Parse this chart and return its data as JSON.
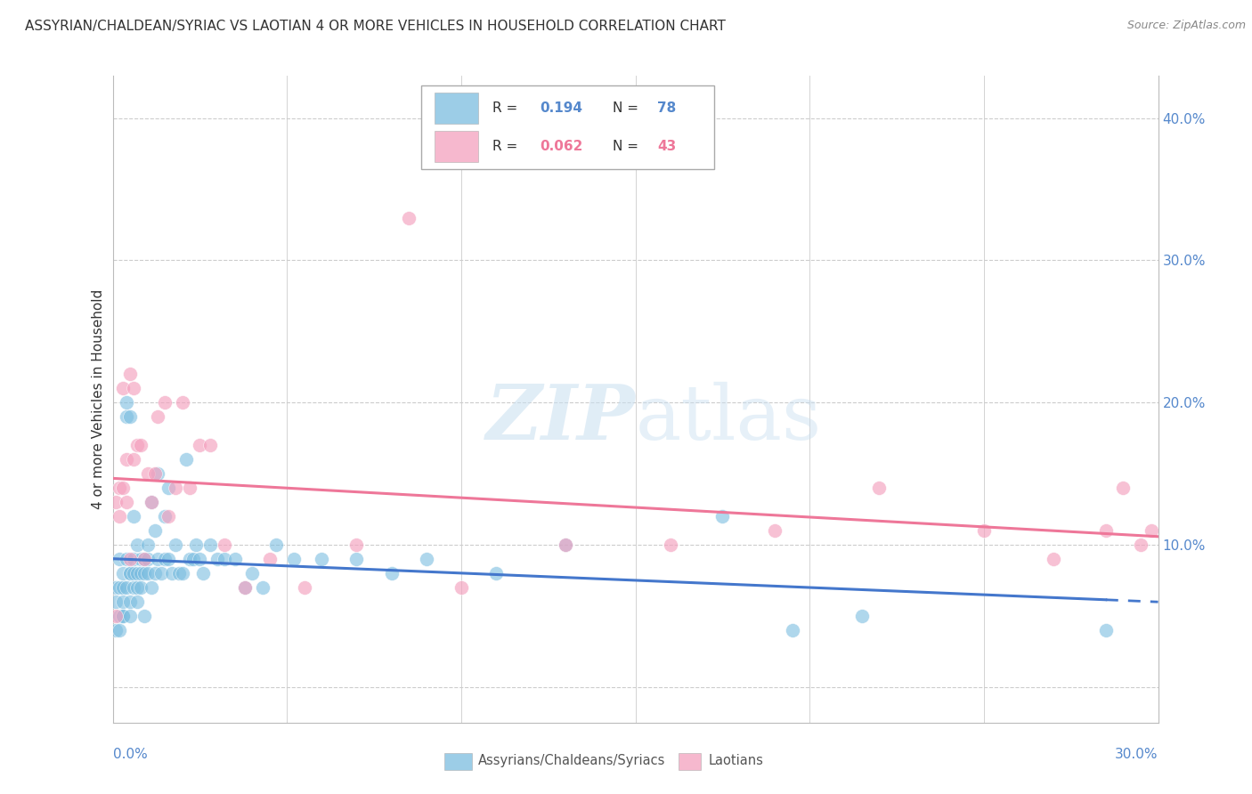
{
  "title": "ASSYRIAN/CHALDEAN/SYRIAC VS LAOTIAN 4 OR MORE VEHICLES IN HOUSEHOLD CORRELATION CHART",
  "source": "Source: ZipAtlas.com",
  "ylabel": "4 or more Vehicles in Household",
  "ylabel_right_ticks": [
    "10.0%",
    "20.0%",
    "30.0%",
    "40.0%"
  ],
  "ylabel_right_values": [
    0.1,
    0.2,
    0.3,
    0.4
  ],
  "xmin": 0.0,
  "xmax": 0.3,
  "ymin": -0.025,
  "ymax": 0.43,
  "blue_R": 0.194,
  "blue_N": 78,
  "pink_R": 0.062,
  "pink_N": 43,
  "blue_color": "#7bbde0",
  "pink_color": "#f4a0be",
  "blue_line_color": "#4477cc",
  "pink_line_color": "#ee7799",
  "legend_label_blue": "Assyrians/Chaldeans/Syriacs",
  "legend_label_pink": "Laotians",
  "blue_scatter_x": [
    0.001,
    0.001,
    0.001,
    0.002,
    0.002,
    0.002,
    0.002,
    0.003,
    0.003,
    0.003,
    0.003,
    0.003,
    0.004,
    0.004,
    0.004,
    0.004,
    0.005,
    0.005,
    0.005,
    0.005,
    0.005,
    0.006,
    0.006,
    0.006,
    0.006,
    0.007,
    0.007,
    0.007,
    0.007,
    0.008,
    0.008,
    0.008,
    0.009,
    0.009,
    0.009,
    0.01,
    0.01,
    0.01,
    0.011,
    0.011,
    0.012,
    0.012,
    0.013,
    0.013,
    0.014,
    0.015,
    0.015,
    0.016,
    0.016,
    0.017,
    0.018,
    0.019,
    0.02,
    0.021,
    0.022,
    0.023,
    0.024,
    0.025,
    0.026,
    0.028,
    0.03,
    0.032,
    0.035,
    0.038,
    0.04,
    0.043,
    0.047,
    0.052,
    0.06,
    0.07,
    0.08,
    0.09,
    0.11,
    0.13,
    0.175,
    0.195,
    0.215,
    0.285
  ],
  "blue_scatter_y": [
    0.06,
    0.07,
    0.04,
    0.07,
    0.04,
    0.09,
    0.05,
    0.05,
    0.07,
    0.08,
    0.05,
    0.06,
    0.07,
    0.09,
    0.2,
    0.19,
    0.06,
    0.08,
    0.05,
    0.19,
    0.08,
    0.07,
    0.09,
    0.08,
    0.12,
    0.07,
    0.08,
    0.06,
    0.1,
    0.09,
    0.07,
    0.08,
    0.08,
    0.09,
    0.05,
    0.08,
    0.1,
    0.09,
    0.07,
    0.13,
    0.08,
    0.11,
    0.09,
    0.15,
    0.08,
    0.09,
    0.12,
    0.09,
    0.14,
    0.08,
    0.1,
    0.08,
    0.08,
    0.16,
    0.09,
    0.09,
    0.1,
    0.09,
    0.08,
    0.1,
    0.09,
    0.09,
    0.09,
    0.07,
    0.08,
    0.07,
    0.1,
    0.09,
    0.09,
    0.09,
    0.08,
    0.09,
    0.08,
    0.1,
    0.12,
    0.04,
    0.05,
    0.04
  ],
  "pink_scatter_x": [
    0.001,
    0.001,
    0.002,
    0.002,
    0.003,
    0.003,
    0.004,
    0.004,
    0.005,
    0.005,
    0.006,
    0.006,
    0.007,
    0.008,
    0.009,
    0.01,
    0.011,
    0.012,
    0.013,
    0.015,
    0.016,
    0.018,
    0.02,
    0.022,
    0.025,
    0.028,
    0.032,
    0.038,
    0.045,
    0.055,
    0.07,
    0.085,
    0.1,
    0.13,
    0.16,
    0.19,
    0.22,
    0.25,
    0.27,
    0.285,
    0.29,
    0.295,
    0.298
  ],
  "pink_scatter_y": [
    0.13,
    0.05,
    0.12,
    0.14,
    0.14,
    0.21,
    0.16,
    0.13,
    0.09,
    0.22,
    0.16,
    0.21,
    0.17,
    0.17,
    0.09,
    0.15,
    0.13,
    0.15,
    0.19,
    0.2,
    0.12,
    0.14,
    0.2,
    0.14,
    0.17,
    0.17,
    0.1,
    0.07,
    0.09,
    0.07,
    0.1,
    0.33,
    0.07,
    0.1,
    0.1,
    0.11,
    0.14,
    0.11,
    0.09,
    0.11,
    0.14,
    0.1,
    0.11
  ]
}
